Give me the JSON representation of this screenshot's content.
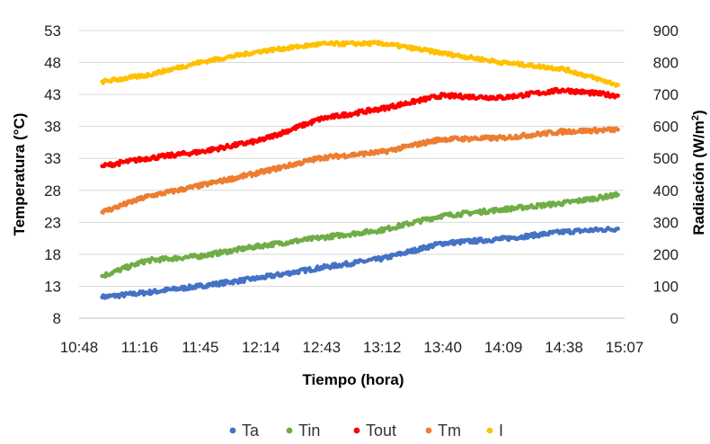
{
  "chart_data": {
    "type": "line",
    "xlabel": "Tiempo (hora)",
    "ylabel": "Temperatura (°C)",
    "y2label": "Radiación (W/m²)",
    "x_ticks": [
      "10:48",
      "11:16",
      "11:45",
      "12:14",
      "12:43",
      "13:12",
      "13:40",
      "14:09",
      "14:38",
      "15:07"
    ],
    "x_range": [
      "10:48",
      "15:07"
    ],
    "x_tick_step_minutes": 28.8,
    "ylim": [
      8,
      53
    ],
    "y_ticks": [
      8,
      13,
      18,
      23,
      28,
      33,
      38,
      43,
      48,
      53
    ],
    "y2lim": [
      0,
      900
    ],
    "y2_ticks": [
      0,
      100,
      200,
      300,
      400,
      500,
      600,
      700,
      800,
      900
    ],
    "grid": "horizontal",
    "legend_position": "bottom",
    "series": [
      {
        "name": "Ta",
        "axis": "left",
        "color": "#4472C4",
        "points": [
          [
            "10:59",
            11.3
          ],
          [
            "11:20",
            12.0
          ],
          [
            "11:45",
            13.0
          ],
          [
            "12:14",
            14.3
          ],
          [
            "12:43",
            15.9
          ],
          [
            "13:12",
            17.3
          ],
          [
            "13:40",
            19.7
          ],
          [
            "14:09",
            20.4
          ],
          [
            "14:38",
            21.5
          ],
          [
            "15:04",
            22.0
          ]
        ]
      },
      {
        "name": "Tin",
        "axis": "left",
        "color": "#70AD47",
        "points": [
          [
            "10:59",
            14.6
          ],
          [
            "11:20",
            17.0
          ],
          [
            "11:45",
            17.7
          ],
          [
            "12:14",
            19.3
          ],
          [
            "12:43",
            20.6
          ],
          [
            "13:12",
            21.8
          ],
          [
            "13:40",
            24.0
          ],
          [
            "14:09",
            25.0
          ],
          [
            "14:38",
            26.0
          ],
          [
            "15:04",
            27.3
          ]
        ]
      },
      {
        "name": "Tout",
        "axis": "left",
        "color": "#FF0000",
        "points": [
          [
            "10:59",
            31.8
          ],
          [
            "11:20",
            33.0
          ],
          [
            "11:45",
            34.0
          ],
          [
            "12:14",
            35.8
          ],
          [
            "12:43",
            39.2
          ],
          [
            "13:12",
            40.8
          ],
          [
            "13:40",
            42.8
          ],
          [
            "14:09",
            42.5
          ],
          [
            "14:38",
            43.7
          ],
          [
            "15:04",
            42.8
          ]
        ]
      },
      {
        "name": "Tm",
        "axis": "left",
        "color": "#ED7D31",
        "points": [
          [
            "10:59",
            24.6
          ],
          [
            "11:20",
            27.0
          ],
          [
            "11:45",
            28.7
          ],
          [
            "12:14",
            30.8
          ],
          [
            "12:43",
            33.1
          ],
          [
            "13:12",
            34.0
          ],
          [
            "13:40",
            36.0
          ],
          [
            "14:09",
            36.2
          ],
          [
            "14:38",
            37.2
          ],
          [
            "15:04",
            37.5
          ]
        ]
      },
      {
        "name": "I",
        "axis": "right",
        "color": "#FFC000",
        "points": [
          [
            "10:59",
            740
          ],
          [
            "11:20",
            760
          ],
          [
            "11:45",
            800
          ],
          [
            "12:14",
            835
          ],
          [
            "12:43",
            858
          ],
          [
            "13:12",
            860
          ],
          [
            "13:40",
            830
          ],
          [
            "14:09",
            800
          ],
          [
            "14:38",
            780
          ],
          [
            "15:04",
            730
          ]
        ]
      }
    ]
  }
}
